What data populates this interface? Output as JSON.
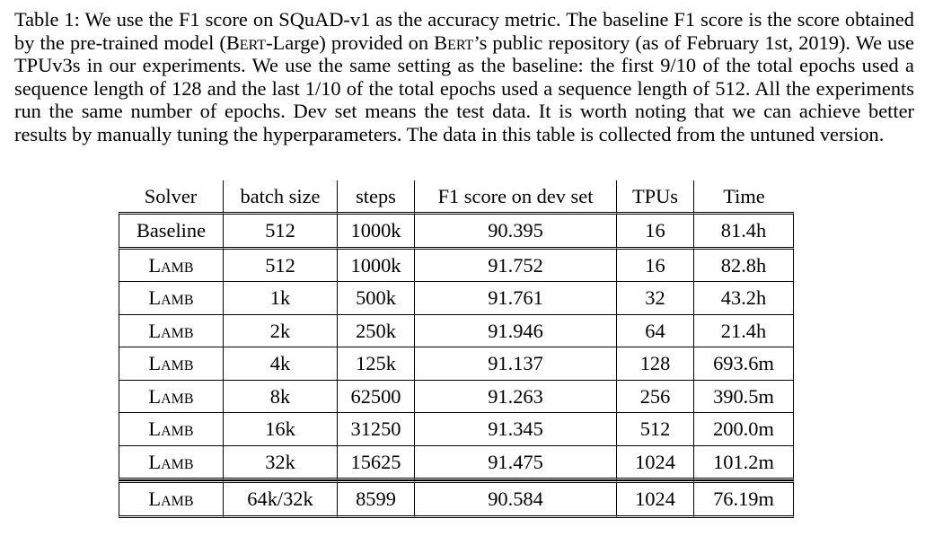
{
  "caption": {
    "label": "Table 1:",
    "part1": "We use the F1 score on SQuAD-v1 as the accuracy metric. The baseline F1 score is the score obtained by the pre-trained model (",
    "bert_large": "Bert",
    "part2": "-Large) provided on ",
    "bert_possessive": "Bert",
    "part3": "’s public repository (as of February 1st, 2019). We use TPUv3s in our experiments. We use the same setting as the baseline: the first 9/10 of the total epochs used a sequence length of 128 and the last 1/10 of the total epochs used a sequence length of 512. All the experiments run the same number of epochs. Dev set means the test data. It is worth noting that we can achieve better results by manually tuning the hyperparameters. The data in this table is collected from the untuned version."
  },
  "table": {
    "headers": [
      "Solver",
      "batch size",
      "steps",
      "F1 score on dev set",
      "TPUs",
      "Time"
    ],
    "baseline_row": [
      "Baseline",
      "512",
      "1000k",
      "90.395",
      "16",
      "81.4h"
    ],
    "lamb_rows": [
      [
        "Lamb",
        "512",
        "1000k",
        "91.752",
        "16",
        "82.8h"
      ],
      [
        "Lamb",
        "1k",
        "500k",
        "91.761",
        "32",
        "43.2h"
      ],
      [
        "Lamb",
        "2k",
        "250k",
        "91.946",
        "64",
        "21.4h"
      ],
      [
        "Lamb",
        "4k",
        "125k",
        "91.137",
        "128",
        "693.6m"
      ],
      [
        "Lamb",
        "8k",
        "62500",
        "91.263",
        "256",
        "390.5m"
      ],
      [
        "Lamb",
        "16k",
        "31250",
        "91.345",
        "512",
        "200.0m"
      ],
      [
        "Lamb",
        "32k",
        "15625",
        "91.475",
        "1024",
        "101.2m"
      ]
    ],
    "mixed_row": [
      "Lamb",
      "64k/32k",
      "8599",
      "90.584",
      "1024",
      "76.19m"
    ]
  }
}
